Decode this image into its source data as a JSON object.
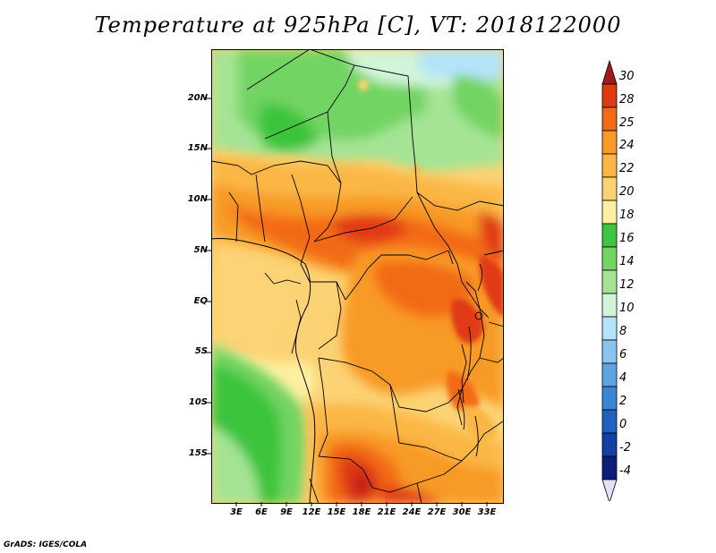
{
  "title": "Temperature at 925hPa [C], VT: 2018122000",
  "credit": "GrADS: IGES/COLA",
  "axes": {
    "lat_labels": [
      "20N",
      "15N",
      "10N",
      "5N",
      "EQ",
      "5S",
      "10S",
      "15S"
    ],
    "lat_values": [
      20,
      15,
      10,
      5,
      0,
      -5,
      -10,
      -15
    ],
    "lon_labels": [
      "3E",
      "6E",
      "9E",
      "12E",
      "15E",
      "18E",
      "21E",
      "24E",
      "27E",
      "30E",
      "33E"
    ],
    "lon_values": [
      3,
      6,
      9,
      12,
      15,
      18,
      21,
      24,
      27,
      30,
      33
    ],
    "lat_range": [
      -19.5,
      25
    ],
    "lon_range": [
      0,
      35
    ]
  },
  "colorbar": {
    "labels": [
      "30",
      "28",
      "25",
      "24",
      "22",
      "20",
      "18",
      "16",
      "14",
      "12",
      "10",
      "8",
      "6",
      "4",
      "2",
      "0",
      "-2",
      "-4"
    ],
    "colors": [
      "#a01a1a",
      "#e03a12",
      "#f36a16",
      "#f89a28",
      "#fbb744",
      "#fcd374",
      "#fdf0a0",
      "#3ec43e",
      "#72d462",
      "#a4e494",
      "#d2f4d8",
      "#b4e4fa",
      "#8ac4ee",
      "#5ea4e4",
      "#3c84d4",
      "#2260c4",
      "#1240a4",
      "#0a1e7a",
      "#e2e2f6"
    ]
  },
  "legend": {
    "land": "#fcd374",
    "ocean_north": "#a4e494"
  }
}
